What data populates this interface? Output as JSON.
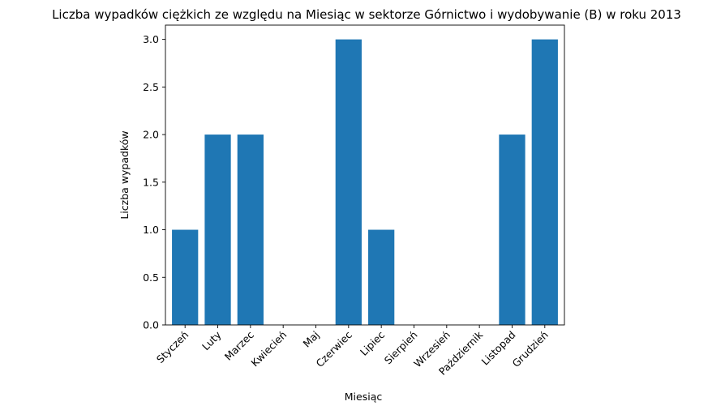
{
  "chart_data": {
    "type": "bar",
    "title": "Liczba wypadków ciężkich ze względu na Miesiąc w sektorze Górnictwo i wydobywanie (B)   w roku 2013",
    "xlabel": "Miesiąc",
    "ylabel": "Liczba wypadków",
    "categories": [
      "Styczeń",
      "Luty",
      "Marzec",
      "Kwiecień",
      "Maj",
      "Czerwiec",
      "Lipiec",
      "Sierpień",
      "Wrzesień",
      "Październik",
      "Listopad",
      "Grudzień"
    ],
    "values": [
      1,
      2,
      2,
      0,
      0,
      3,
      1,
      0,
      0,
      0,
      2,
      3
    ],
    "ylim": [
      0,
      3.15
    ],
    "yticks": [
      "0.0",
      "0.5",
      "1.0",
      "1.5",
      "2.0",
      "2.5",
      "3.0"
    ],
    "grid": false,
    "bar_color": "#1f77b4"
  }
}
